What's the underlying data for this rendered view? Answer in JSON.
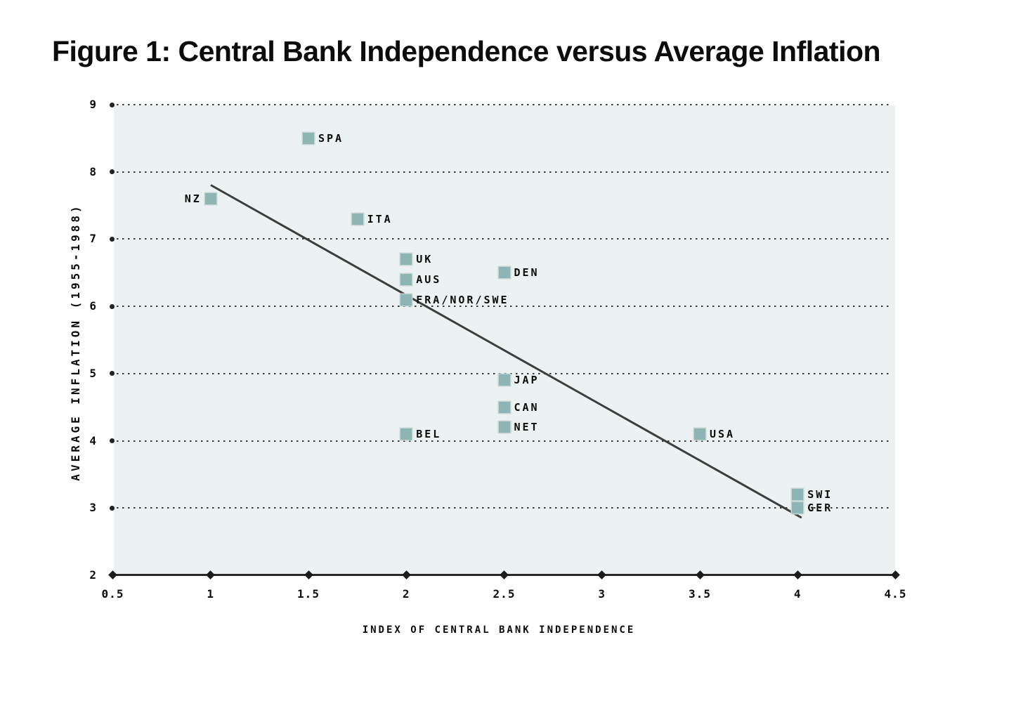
{
  "figure": {
    "title": "Figure 1: Central Bank Independence versus Average Inflation"
  },
  "chart_data": {
    "type": "scatter",
    "title": "Figure 1: Central Bank Independence versus Average Inflation",
    "xlabel": "INDEX OF CENTRAL BANK INDEPENDENCE",
    "ylabel": "AVERAGE INFLATION (1955-1988)",
    "xlim": [
      0.5,
      4.5
    ],
    "ylim": [
      2,
      9
    ],
    "x_ticks": [
      "0.5",
      "1",
      "1.5",
      "2",
      "2.5",
      "3",
      "3.5",
      "4",
      "4.5"
    ],
    "y_ticks": [
      "2",
      "3",
      "4",
      "5",
      "6",
      "7",
      "8",
      "9"
    ],
    "grid": "horizontal dotted gridlines at integer inflation values, dot cap at left end",
    "legend": null,
    "points": [
      {
        "label": "SPA",
        "x": 1.5,
        "y": 8.5,
        "label_side": "right"
      },
      {
        "label": "NZ",
        "x": 1.0,
        "y": 7.6,
        "label_side": "left"
      },
      {
        "label": "ITA",
        "x": 1.75,
        "y": 7.3,
        "label_side": "right"
      },
      {
        "label": "UK",
        "x": 2.0,
        "y": 6.7,
        "label_side": "right"
      },
      {
        "label": "AUS",
        "x": 2.0,
        "y": 6.4,
        "label_side": "right"
      },
      {
        "label": "FRA/NOR/SWE",
        "x": 2.0,
        "y": 6.1,
        "label_side": "right"
      },
      {
        "label": "DEN",
        "x": 2.5,
        "y": 6.5,
        "label_side": "right"
      },
      {
        "label": "JAP",
        "x": 2.5,
        "y": 4.9,
        "label_side": "right"
      },
      {
        "label": "CAN",
        "x": 2.5,
        "y": 4.5,
        "label_side": "right"
      },
      {
        "label": "NET",
        "x": 2.5,
        "y": 4.2,
        "label_side": "right"
      },
      {
        "label": "BEL",
        "x": 2.0,
        "y": 4.1,
        "label_side": "right"
      },
      {
        "label": "USA",
        "x": 3.5,
        "y": 4.1,
        "label_side": "right"
      },
      {
        "label": "SWI",
        "x": 4.0,
        "y": 3.2,
        "label_side": "right"
      },
      {
        "label": "GER",
        "x": 4.0,
        "y": 3.0,
        "label_side": "right"
      }
    ],
    "trendline": {
      "x1": 1.0,
      "y1": 7.8,
      "x2": 4.02,
      "y2": 2.85
    },
    "colors": {
      "marker": "#8fb4b4",
      "plot_bg": "#ecf2f1",
      "gridline": "#3c3c3c",
      "axis": "#262626",
      "trendline": "#3d3d3d",
      "text": "#0b0b0b"
    }
  }
}
